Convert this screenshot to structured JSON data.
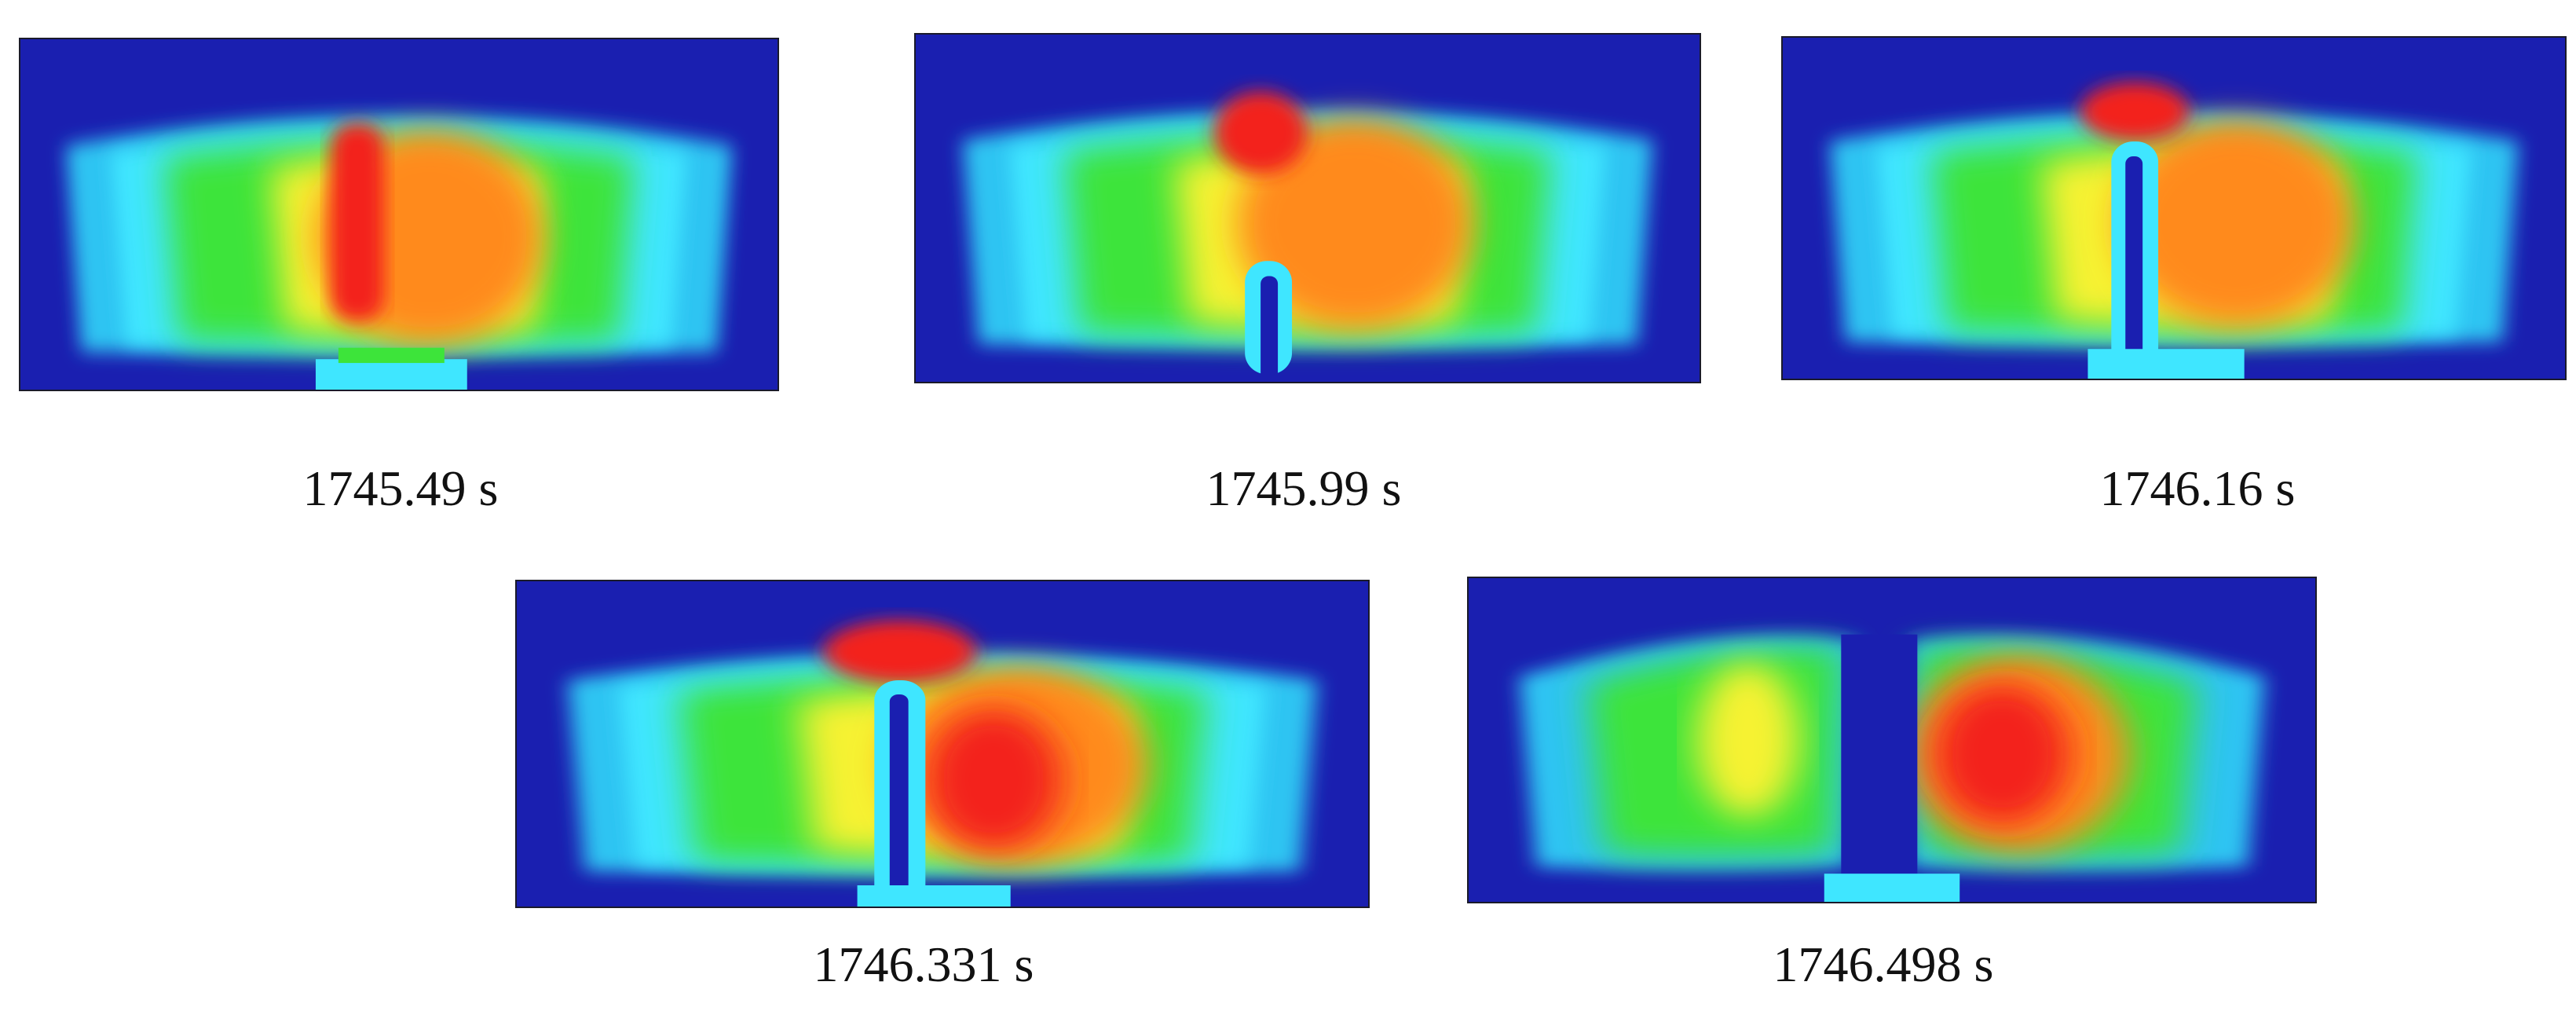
{
  "figure": {
    "panels": [
      {
        "id": "p1",
        "caption": "1745.49 s",
        "plume": "centered"
      },
      {
        "id": "p2",
        "caption": "1745.99 s",
        "plume": "rising-jet"
      },
      {
        "id": "p3",
        "caption": "1746.16 s",
        "plume": "jet-reaches-top"
      },
      {
        "id": "p4",
        "caption": "1746.331 s",
        "plume": "jet-bends-left"
      },
      {
        "id": "p5",
        "caption": "1746.498 s",
        "plume": "split"
      }
    ],
    "colors": {
      "background": "#1a1fb0",
      "cold": "#1a1fb0",
      "cyan": "#3fe6ff",
      "green": "#3de43a",
      "yellow": "#f6f231",
      "orange": "#ff8a1a",
      "hot": "#f3241a"
    }
  }
}
